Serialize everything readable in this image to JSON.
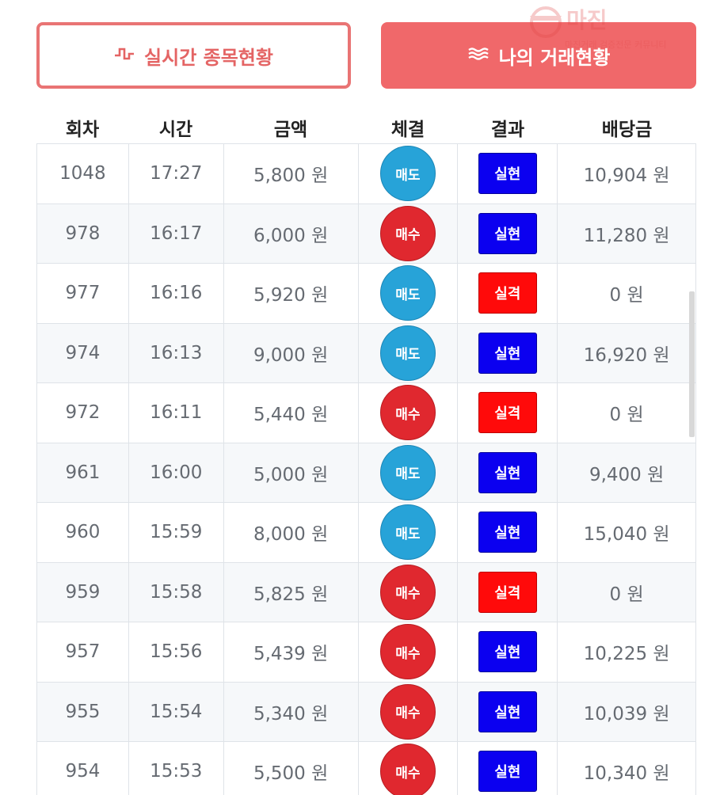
{
  "tabs": {
    "realtime": {
      "label": "실시간 종목현황",
      "icon": "pulse-icon"
    },
    "my_trades": {
      "label": "나의 거래현황",
      "icon": "waves-icon"
    }
  },
  "watermark": {
    "title": "마진",
    "subtitle": "마진거래 검증전문 커뮤니티"
  },
  "table": {
    "headers": [
      "회차",
      "시간",
      "금액",
      "체결",
      "결과",
      "배당금"
    ],
    "rows": [
      {
        "round": "1048",
        "time": "17:27",
        "amount": "5,800 원",
        "trade": "매도",
        "trade_type": "sell",
        "result": "실현",
        "result_type": "win",
        "payout": "10,904 원"
      },
      {
        "round": "978",
        "time": "16:17",
        "amount": "6,000 원",
        "trade": "매수",
        "trade_type": "buy",
        "result": "실현",
        "result_type": "win",
        "payout": "11,280 원"
      },
      {
        "round": "977",
        "time": "16:16",
        "amount": "5,920 원",
        "trade": "매도",
        "trade_type": "sell",
        "result": "실격",
        "result_type": "lose",
        "payout": "0 원"
      },
      {
        "round": "974",
        "time": "16:13",
        "amount": "9,000 원",
        "trade": "매도",
        "trade_type": "sell",
        "result": "실현",
        "result_type": "win",
        "payout": "16,920 원"
      },
      {
        "round": "972",
        "time": "16:11",
        "amount": "5,440 원",
        "trade": "매수",
        "trade_type": "buy",
        "result": "실격",
        "result_type": "lose",
        "payout": "0 원"
      },
      {
        "round": "961",
        "time": "16:00",
        "amount": "5,000 원",
        "trade": "매도",
        "trade_type": "sell",
        "result": "실현",
        "result_type": "win",
        "payout": "9,400 원"
      },
      {
        "round": "960",
        "time": "15:59",
        "amount": "8,000 원",
        "trade": "매도",
        "trade_type": "sell",
        "result": "실현",
        "result_type": "win",
        "payout": "15,040 원"
      },
      {
        "round": "959",
        "time": "15:58",
        "amount": "5,825 원",
        "trade": "매수",
        "trade_type": "buy",
        "result": "실격",
        "result_type": "lose",
        "payout": "0 원"
      },
      {
        "round": "957",
        "time": "15:56",
        "amount": "5,439 원",
        "trade": "매수",
        "trade_type": "buy",
        "result": "실현",
        "result_type": "win",
        "payout": "10,225 원"
      },
      {
        "round": "955",
        "time": "15:54",
        "amount": "5,340 원",
        "trade": "매수",
        "trade_type": "buy",
        "result": "실현",
        "result_type": "win",
        "payout": "10,039 원"
      },
      {
        "round": "954",
        "time": "15:53",
        "amount": "5,500 원",
        "trade": "매수",
        "trade_type": "buy",
        "result": "실현",
        "result_type": "win",
        "payout": "10,340 원"
      }
    ]
  },
  "colors": {
    "sell": "#27a3d8",
    "buy": "#e0282f",
    "win": "#0b00f0",
    "lose": "#ff0a0a",
    "accent": "#f0686a"
  }
}
